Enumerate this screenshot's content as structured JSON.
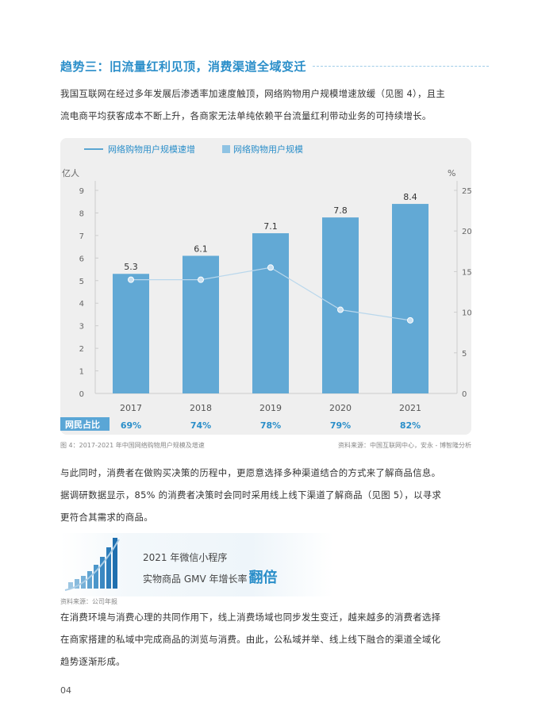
{
  "heading": "趋势三：旧流量红利见顶，消费渠道全域变迁",
  "paragraph1": [
    "我国互联网在经过多年发展后渗透率加速度触顶，网络购物用户规模增速放缓（见图 4），且主",
    "流电商平均获客成本不断上升，各商家无法单纯依赖平台流量红利带动业务的可持续增长。"
  ],
  "chart": {
    "legend_line": "网络购物用户规模速增",
    "legend_bar": "网络购物用户规模",
    "left_unit": "亿人",
    "right_unit": "%",
    "left_ticks": [
      "0",
      "1",
      "2",
      "3",
      "4",
      "5",
      "6",
      "7",
      "8",
      "9"
    ],
    "right_ticks": [
      "0",
      "5",
      "10",
      "15",
      "20",
      "25"
    ],
    "share_label": "网民占比",
    "colors": {
      "bar": "#62a9d5",
      "line": "#b9d7ec",
      "accent": "#2a8ec9",
      "label_bg": "#5aa6d6"
    }
  },
  "chart_data": {
    "type": "bar",
    "categories": [
      "2017",
      "2018",
      "2019",
      "2020",
      "2021"
    ],
    "series": [
      {
        "name": "网络购物用户规模",
        "type": "bar",
        "axis": "left",
        "values": [
          5.3,
          6.1,
          7.1,
          7.8,
          8.4
        ],
        "labels": [
          "5.3",
          "6.1",
          "7.1",
          "7.8",
          "8.4"
        ]
      },
      {
        "name": "网络购物用户规模速增",
        "type": "line",
        "axis": "right",
        "values": [
          14,
          14,
          15.5,
          10.3,
          9
        ]
      }
    ],
    "share": [
      "69%",
      "74%",
      "78%",
      "79%",
      "82%"
    ],
    "ylim_left": [
      0,
      9
    ],
    "ylim_right": [
      0,
      25
    ],
    "legend_position": "top-left",
    "grid": false
  },
  "caption": {
    "left": "图 4：2017-2021 年中国网络购物用户规模及增速",
    "right": "资料来源：中国互联网中心，安永 - 博智隆分析"
  },
  "paragraph2": [
    "与此同时，消费者在做购买决策的历程中，更愿意选择多种渠道结合的方式来了解商品信息。",
    "据调研数据显示，85% 的消费者决策时会同时采用线上线下渠道了解商品（见图 5），以寻求",
    "更符合其需求的商品。"
  ],
  "callout": {
    "line1": "2021 年微信小程序",
    "line2": "实物商品 GMV 年增长率",
    "emphasis": "翻倍",
    "source": "资料来源：公司年报"
  },
  "paragraph3": [
    "在消费环境与消费心理的共同作用下，线上消费场域也同步发生变迁，越来越多的消费者选择",
    "在商家搭建的私域中完成商品的浏览与消费。由此，公私域并举、线上线下融合的渠道全域化",
    "趋势逐渐形成。"
  ],
  "page_number": "04"
}
